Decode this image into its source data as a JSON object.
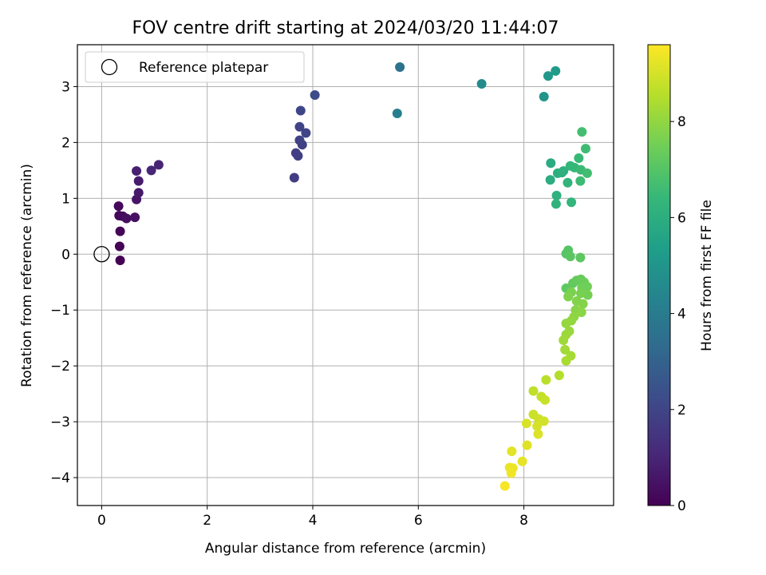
{
  "chart_data": {
    "type": "scatter",
    "title": "FOV centre drift starting at 2024/03/20 11:44:07",
    "xlabel": "Angular distance from reference (arcmin)",
    "ylabel": "Rotation from reference (arcmin)",
    "xlim": [
      -0.46,
      9.7
    ],
    "ylim": [
      -4.5,
      3.75
    ],
    "xticks": [
      0,
      2,
      4,
      6,
      8
    ],
    "xtick_labels": [
      "0",
      "2",
      "4",
      "6",
      "8"
    ],
    "yticks": [
      -4,
      -3,
      -2,
      -1,
      0,
      1,
      2,
      3
    ],
    "ytick_labels": [
      "−4",
      "−3",
      "−2",
      "−1",
      "0",
      "1",
      "2",
      "3"
    ],
    "grid": true,
    "legend": {
      "placement": "top-left",
      "entries": [
        "Reference platepar"
      ]
    },
    "reference_point": {
      "label": "Reference platepar",
      "x": 0,
      "y": 0,
      "marker": "open-circle"
    },
    "colorbar": {
      "label": "Hours from first FF file",
      "range": [
        0,
        9.6
      ],
      "ticks": [
        0,
        2,
        4,
        6,
        8
      ],
      "tick_labels": [
        "0",
        "2",
        "4",
        "6",
        "8"
      ],
      "colormap": "viridis"
    },
    "colormap_stops": [
      "#440154",
      "#482878",
      "#3e4989",
      "#31688e",
      "#26828e",
      "#1f9e89",
      "#35b779",
      "#6ece58",
      "#b5de2b",
      "#fde725"
    ],
    "points": [
      {
        "x": 0.35,
        "y": -0.11,
        "t": 0.0
      },
      {
        "x": 0.34,
        "y": 0.14,
        "t": 0.05
      },
      {
        "x": 0.35,
        "y": 0.41,
        "t": 0.1
      },
      {
        "x": 0.33,
        "y": 0.69,
        "t": 0.15
      },
      {
        "x": 0.32,
        "y": 0.86,
        "t": 0.2
      },
      {
        "x": 0.4,
        "y": 0.68,
        "t": 0.25
      },
      {
        "x": 0.47,
        "y": 0.64,
        "t": 0.35
      },
      {
        "x": 0.63,
        "y": 0.66,
        "t": 0.45
      },
      {
        "x": 0.66,
        "y": 0.98,
        "t": 0.55
      },
      {
        "x": 0.7,
        "y": 1.1,
        "t": 0.65
      },
      {
        "x": 0.7,
        "y": 1.31,
        "t": 0.75
      },
      {
        "x": 0.66,
        "y": 1.49,
        "t": 0.85
      },
      {
        "x": 0.94,
        "y": 1.5,
        "t": 1.05
      },
      {
        "x": 1.08,
        "y": 1.6,
        "t": 0.95
      },
      {
        "x": 3.65,
        "y": 1.37,
        "t": 1.7
      },
      {
        "x": 3.68,
        "y": 1.81,
        "t": 1.75
      },
      {
        "x": 3.72,
        "y": 1.76,
        "t": 1.8
      },
      {
        "x": 3.8,
        "y": 1.96,
        "t": 1.85
      },
      {
        "x": 3.75,
        "y": 2.04,
        "t": 1.9
      },
      {
        "x": 3.75,
        "y": 2.28,
        "t": 1.95
      },
      {
        "x": 3.87,
        "y": 2.17,
        "t": 2.0
      },
      {
        "x": 3.77,
        "y": 2.57,
        "t": 2.05
      },
      {
        "x": 4.04,
        "y": 2.85,
        "t": 2.2
      },
      {
        "x": 5.6,
        "y": 2.52,
        "t": 4.1
      },
      {
        "x": 5.65,
        "y": 3.35,
        "t": 3.6
      },
      {
        "x": 7.2,
        "y": 3.05,
        "t": 4.6
      },
      {
        "x": 8.38,
        "y": 2.82,
        "t": 5.0
      },
      {
        "x": 8.46,
        "y": 3.19,
        "t": 5.1
      },
      {
        "x": 8.6,
        "y": 3.28,
        "t": 5.2
      },
      {
        "x": 8.51,
        "y": 1.63,
        "t": 5.9
      },
      {
        "x": 8.5,
        "y": 1.33,
        "t": 5.95
      },
      {
        "x": 8.64,
        "y": 1.45,
        "t": 6.0
      },
      {
        "x": 8.72,
        "y": 1.46,
        "t": 6.05
      },
      {
        "x": 8.75,
        "y": 1.49,
        "t": 6.1
      },
      {
        "x": 8.62,
        "y": 1.05,
        "t": 6.15
      },
      {
        "x": 8.61,
        "y": 0.9,
        "t": 6.2
      },
      {
        "x": 8.83,
        "y": 1.28,
        "t": 6.25
      },
      {
        "x": 8.9,
        "y": 0.93,
        "t": 6.3
      },
      {
        "x": 8.88,
        "y": 1.58,
        "t": 6.35
      },
      {
        "x": 8.96,
        "y": 1.55,
        "t": 6.4
      },
      {
        "x": 9.04,
        "y": 1.72,
        "t": 6.45
      },
      {
        "x": 9.08,
        "y": 1.51,
        "t": 6.5
      },
      {
        "x": 9.07,
        "y": 1.31,
        "t": 6.55
      },
      {
        "x": 9.17,
        "y": 1.89,
        "t": 6.6
      },
      {
        "x": 9.2,
        "y": 1.45,
        "t": 6.65
      },
      {
        "x": 9.1,
        "y": 2.19,
        "t": 6.7
      },
      {
        "x": 8.84,
        "y": 0.07,
        "t": 7.0
      },
      {
        "x": 8.8,
        "y": 0.01,
        "t": 7.05
      },
      {
        "x": 8.88,
        "y": -0.04,
        "t": 7.1
      },
      {
        "x": 9.07,
        "y": -0.06,
        "t": 7.15
      },
      {
        "x": 8.8,
        "y": -0.61,
        "t": 7.2
      },
      {
        "x": 8.93,
        "y": -0.52,
        "t": 7.25
      },
      {
        "x": 9.0,
        "y": -0.47,
        "t": 7.3
      },
      {
        "x": 9.08,
        "y": -0.45,
        "t": 7.35
      },
      {
        "x": 9.14,
        "y": -0.5,
        "t": 7.4
      },
      {
        "x": 9.1,
        "y": -0.6,
        "t": 7.45
      },
      {
        "x": 9.2,
        "y": -0.58,
        "t": 7.5
      },
      {
        "x": 9.21,
        "y": -0.73,
        "t": 7.55
      },
      {
        "x": 9.08,
        "y": -0.7,
        "t": 7.6
      },
      {
        "x": 8.9,
        "y": -0.68,
        "t": 7.65
      },
      {
        "x": 8.84,
        "y": -0.76,
        "t": 7.7
      },
      {
        "x": 9.0,
        "y": -0.84,
        "t": 7.75
      },
      {
        "x": 9.12,
        "y": -0.89,
        "t": 7.8
      },
      {
        "x": 8.98,
        "y": -1.0,
        "t": 7.85
      },
      {
        "x": 9.09,
        "y": -1.04,
        "t": 7.9
      },
      {
        "x": 8.95,
        "y": -1.12,
        "t": 7.95
      },
      {
        "x": 8.9,
        "y": -1.19,
        "t": 8.0
      },
      {
        "x": 8.8,
        "y": -1.24,
        "t": 8.05
      },
      {
        "x": 8.86,
        "y": -1.38,
        "t": 8.1
      },
      {
        "x": 8.8,
        "y": -1.44,
        "t": 8.15
      },
      {
        "x": 8.75,
        "y": -1.54,
        "t": 8.2
      },
      {
        "x": 8.78,
        "y": -1.71,
        "t": 8.25
      },
      {
        "x": 8.89,
        "y": -1.82,
        "t": 8.3
      },
      {
        "x": 8.8,
        "y": -1.91,
        "t": 8.35
      },
      {
        "x": 8.67,
        "y": -2.17,
        "t": 8.5
      },
      {
        "x": 8.42,
        "y": -2.25,
        "t": 8.6
      },
      {
        "x": 8.18,
        "y": -2.45,
        "t": 8.7
      },
      {
        "x": 8.33,
        "y": -2.55,
        "t": 8.75
      },
      {
        "x": 8.4,
        "y": -2.61,
        "t": 8.8
      },
      {
        "x": 8.18,
        "y": -2.87,
        "t": 8.85
      },
      {
        "x": 8.28,
        "y": -2.95,
        "t": 8.9
      },
      {
        "x": 8.38,
        "y": -2.99,
        "t": 8.95
      },
      {
        "x": 8.25,
        "y": -3.08,
        "t": 9.0
      },
      {
        "x": 8.05,
        "y": -3.03,
        "t": 9.05
      },
      {
        "x": 8.27,
        "y": -3.22,
        "t": 9.1
      },
      {
        "x": 8.06,
        "y": -3.42,
        "t": 9.15
      },
      {
        "x": 7.77,
        "y": -3.53,
        "t": 9.2
      },
      {
        "x": 7.97,
        "y": -3.71,
        "t": 9.25
      },
      {
        "x": 7.73,
        "y": -3.82,
        "t": 9.3
      },
      {
        "x": 7.79,
        "y": -3.83,
        "t": 9.35
      },
      {
        "x": 7.76,
        "y": -3.92,
        "t": 9.4
      },
      {
        "x": 7.64,
        "y": -4.15,
        "t": 9.5
      }
    ]
  }
}
